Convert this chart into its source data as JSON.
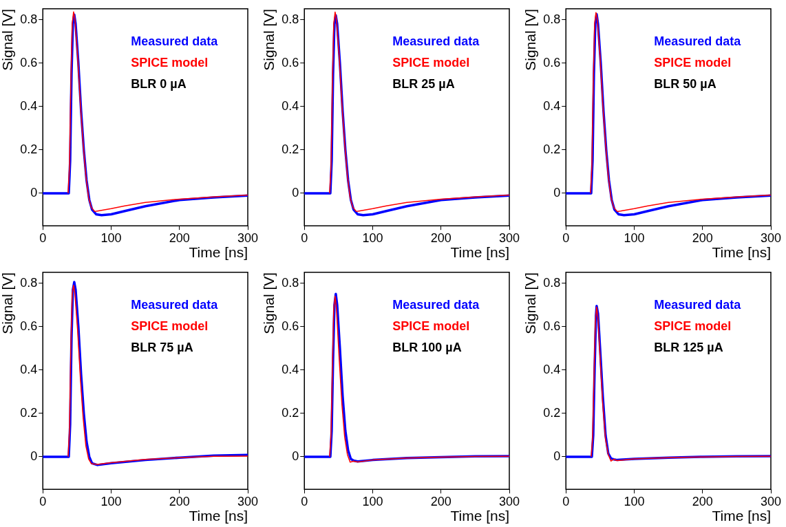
{
  "chart_data": [
    {
      "type": "line",
      "xlabel": "Time [ns]",
      "ylabel": "Signal [V]",
      "xlim": [
        0,
        300
      ],
      "xticks": [
        0,
        100,
        200,
        300
      ],
      "ylim": [
        -0.15,
        0.85
      ],
      "yticks": [
        0,
        0.2,
        0.4,
        0.6,
        0.8
      ],
      "legend": "top right",
      "marker": "none",
      "annotations": [
        "BLR 0 µA"
      ],
      "series": [
        {
          "name": "Measured data",
          "color": "#0000ff",
          "x": [
            0,
            38,
            40,
            42,
            44,
            46,
            48,
            52,
            56,
            60,
            64,
            68,
            72,
            78,
            86,
            100,
            120,
            150,
            200,
            250,
            300
          ],
          "values": [
            0,
            0,
            0.15,
            0.55,
            0.78,
            0.823,
            0.78,
            0.6,
            0.38,
            0.2,
            0.06,
            -0.03,
            -0.075,
            -0.097,
            -0.101,
            -0.097,
            -0.082,
            -0.06,
            -0.031,
            -0.019,
            -0.011
          ]
        },
        {
          "name": "SPICE model",
          "color": "#ff0000",
          "x": [
            37,
            39,
            41,
            43,
            45,
            47,
            51,
            55,
            59,
            63,
            67,
            71,
            76,
            80,
            100,
            120,
            150,
            200,
            250,
            300
          ],
          "values": [
            0,
            0.12,
            0.5,
            0.78,
            0.836,
            0.8,
            0.63,
            0.41,
            0.23,
            0.08,
            -0.02,
            -0.065,
            -0.084,
            -0.082,
            -0.071,
            -0.058,
            -0.042,
            -0.027,
            -0.017,
            -0.008
          ]
        }
      ]
    },
    {
      "type": "line",
      "xlabel": "Time [ns]",
      "ylabel": "Signal [V]",
      "xlim": [
        0,
        300
      ],
      "xticks": [
        0,
        100,
        200,
        300
      ],
      "ylim": [
        -0.15,
        0.85
      ],
      "yticks": [
        0,
        0.2,
        0.4,
        0.6,
        0.8
      ],
      "legend": "top right",
      "marker": "none",
      "annotations": [
        "BLR 25 µA"
      ],
      "series": [
        {
          "name": "Measured data",
          "color": "#0000ff",
          "x": [
            0,
            38,
            40,
            42,
            44,
            46,
            48,
            52,
            56,
            60,
            64,
            68,
            72,
            78,
            86,
            100,
            120,
            150,
            200,
            250,
            300
          ],
          "values": [
            0,
            0,
            0.15,
            0.55,
            0.78,
            0.82,
            0.78,
            0.6,
            0.38,
            0.2,
            0.06,
            -0.03,
            -0.075,
            -0.097,
            -0.101,
            -0.097,
            -0.082,
            -0.06,
            -0.031,
            -0.019,
            -0.011
          ]
        },
        {
          "name": "SPICE model",
          "color": "#ff0000",
          "x": [
            37,
            39,
            41,
            43,
            45,
            47,
            51,
            55,
            59,
            63,
            67,
            71,
            76,
            80,
            100,
            120,
            150,
            200,
            250,
            300
          ],
          "values": [
            0,
            0.12,
            0.5,
            0.78,
            0.835,
            0.8,
            0.63,
            0.41,
            0.23,
            0.08,
            -0.02,
            -0.065,
            -0.084,
            -0.082,
            -0.071,
            -0.058,
            -0.042,
            -0.027,
            -0.017,
            -0.008
          ]
        }
      ]
    },
    {
      "type": "line",
      "xlabel": "Time [ns]",
      "ylabel": "Signal [V]",
      "xlim": [
        0,
        300
      ],
      "xticks": [
        0,
        100,
        200,
        300
      ],
      "ylim": [
        -0.15,
        0.85
      ],
      "yticks": [
        0,
        0.2,
        0.4,
        0.6,
        0.8
      ],
      "legend": "top right",
      "marker": "none",
      "annotations": [
        "BLR 50 µA"
      ],
      "series": [
        {
          "name": "Measured data",
          "color": "#0000ff",
          "x": [
            0,
            37,
            39,
            41,
            43,
            45,
            47,
            51,
            55,
            59,
            63,
            67,
            71,
            77,
            85,
            100,
            120,
            150,
            200,
            250,
            300
          ],
          "values": [
            0,
            0,
            0.15,
            0.55,
            0.78,
            0.825,
            0.78,
            0.6,
            0.38,
            0.2,
            0.06,
            -0.03,
            -0.075,
            -0.097,
            -0.101,
            -0.097,
            -0.082,
            -0.06,
            -0.031,
            -0.019,
            -0.011
          ]
        },
        {
          "name": "SPICE model",
          "color": "#ff0000",
          "x": [
            36,
            38,
            40,
            42,
            44,
            46,
            50,
            54,
            58,
            62,
            66,
            70,
            75,
            80,
            100,
            120,
            150,
            200,
            250,
            300
          ],
          "values": [
            0,
            0.12,
            0.5,
            0.78,
            0.833,
            0.8,
            0.63,
            0.41,
            0.23,
            0.08,
            -0.02,
            -0.065,
            -0.084,
            -0.082,
            -0.071,
            -0.058,
            -0.042,
            -0.027,
            -0.017,
            -0.008
          ]
        }
      ]
    },
    {
      "type": "line",
      "xlabel": "Time [ns]",
      "ylabel": "Signal [V]",
      "xlim": [
        0,
        300
      ],
      "xticks": [
        0,
        100,
        200,
        300
      ],
      "ylim": [
        -0.15,
        0.85
      ],
      "yticks": [
        0,
        0.2,
        0.4,
        0.6,
        0.8
      ],
      "legend": "top right",
      "marker": "none",
      "annotations": [
        "BLR 75 µA"
      ],
      "series": [
        {
          "name": "Measured data",
          "color": "#0000ff",
          "x": [
            0,
            38,
            40,
            42,
            44,
            46,
            48,
            52,
            56,
            60,
            64,
            68,
            72,
            80,
            100,
            150,
            200,
            250,
            300
          ],
          "values": [
            0,
            0,
            0.15,
            0.55,
            0.77,
            0.805,
            0.77,
            0.6,
            0.38,
            0.2,
            0.07,
            0,
            -0.03,
            -0.038,
            -0.03,
            -0.015,
            -0.004,
            0.005,
            0.008
          ]
        },
        {
          "name": "SPICE model",
          "color": "#ff0000",
          "x": [
            37,
            39,
            41,
            43,
            45,
            47,
            51,
            55,
            59,
            63,
            67,
            71,
            80,
            100,
            150,
            200,
            250,
            300
          ],
          "values": [
            0,
            0.12,
            0.5,
            0.75,
            0.79,
            0.75,
            0.58,
            0.36,
            0.18,
            0.05,
            -0.01,
            -0.032,
            -0.035,
            -0.027,
            -0.012,
            -0.004,
            0.002,
            0.003
          ]
        }
      ]
    },
    {
      "type": "line",
      "xlabel": "Time [ns]",
      "ylabel": "Signal [V]",
      "xlim": [
        0,
        300
      ],
      "xticks": [
        0,
        100,
        200,
        300
      ],
      "ylim": [
        -0.15,
        0.85
      ],
      "yticks": [
        0,
        0.2,
        0.4,
        0.6,
        0.8
      ],
      "legend": "top right",
      "marker": "none",
      "annotations": [
        "BLR 100 µA"
      ],
      "series": [
        {
          "name": "Measured data",
          "color": "#0000ff",
          "x": [
            0,
            38,
            40,
            42,
            44,
            46,
            48,
            52,
            56,
            60,
            64,
            68,
            72,
            78,
            100,
            150,
            200,
            250,
            300
          ],
          "values": [
            0,
            0,
            0.12,
            0.45,
            0.7,
            0.75,
            0.7,
            0.5,
            0.28,
            0.12,
            0.03,
            -0.01,
            -0.018,
            -0.022,
            -0.015,
            -0.006,
            -0.002,
            0.002,
            0.003
          ]
        },
        {
          "name": "SPICE model",
          "color": "#ff0000",
          "x": [
            37,
            39,
            41,
            43,
            45,
            47,
            51,
            55,
            59,
            63,
            67,
            72,
            78,
            100,
            150,
            200,
            250,
            300
          ],
          "values": [
            0,
            0.1,
            0.4,
            0.68,
            0.74,
            0.68,
            0.45,
            0.24,
            0.09,
            0.01,
            -0.025,
            -0.02,
            -0.024,
            -0.015,
            -0.006,
            -0.002,
            0.001,
            0.002
          ]
        }
      ]
    },
    {
      "type": "line",
      "xlabel": "Time [ns]",
      "ylabel": "Signal [V]",
      "xlim": [
        0,
        300
      ],
      "xticks": [
        0,
        100,
        200,
        300
      ],
      "ylim": [
        -0.15,
        0.85
      ],
      "yticks": [
        0,
        0.2,
        0.4,
        0.6,
        0.8
      ],
      "legend": "top right",
      "marker": "none",
      "annotations": [
        "BLR 125 µA"
      ],
      "series": [
        {
          "name": "Measured data",
          "color": "#0000ff",
          "x": [
            0,
            38,
            40,
            42,
            44,
            45,
            47,
            50,
            54,
            58,
            62,
            66,
            70,
            75,
            100,
            150,
            200,
            250,
            300
          ],
          "values": [
            0,
            0,
            0.1,
            0.4,
            0.65,
            0.695,
            0.66,
            0.5,
            0.28,
            0.1,
            0.015,
            -0.008,
            -0.012,
            -0.015,
            -0.01,
            -0.004,
            0,
            0.002,
            0.003
          ]
        },
        {
          "name": "SPICE model",
          "color": "#ff0000",
          "x": [
            37,
            39,
            41,
            43,
            45,
            47,
            50,
            54,
            58,
            62,
            66,
            70,
            75,
            100,
            150,
            200,
            250,
            300
          ],
          "values": [
            0,
            0.08,
            0.35,
            0.62,
            0.69,
            0.64,
            0.46,
            0.24,
            0.08,
            0.01,
            -0.02,
            -0.012,
            -0.018,
            -0.01,
            -0.004,
            -0.001,
            0.001,
            0.002
          ]
        }
      ]
    }
  ]
}
